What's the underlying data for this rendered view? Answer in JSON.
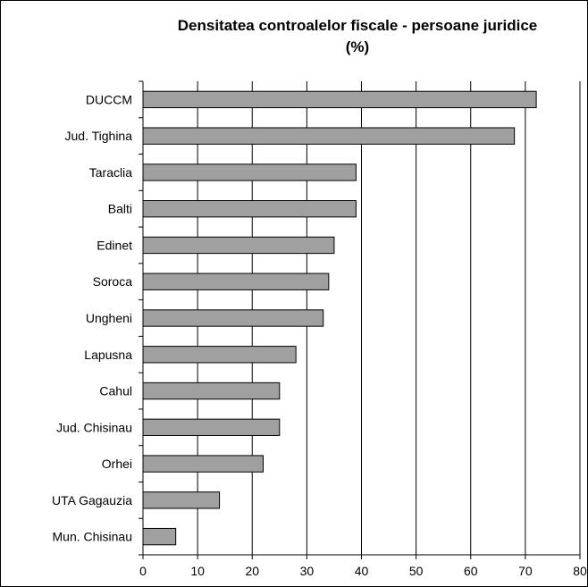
{
  "chart_data": {
    "type": "bar",
    "orientation": "horizontal",
    "title_lines": [
      "Densitatea controalelor fiscale - persoane juridice",
      "(%)"
    ],
    "categories": [
      "DUCCM",
      "Jud. Tighina",
      "Taraclia",
      "Balti",
      "Edinet",
      "Soroca",
      "Ungheni",
      "Lapusna",
      "Cahul",
      "Jud. Chisinau",
      "Orhei",
      "UTA Gagauzia",
      "Mun. Chisinau"
    ],
    "values": [
      72,
      68,
      39,
      39,
      35,
      34,
      33,
      28,
      25,
      25,
      22,
      14,
      6
    ],
    "xlim": [
      0,
      80
    ],
    "x_ticks": [
      0,
      10,
      20,
      30,
      40,
      50,
      60,
      70,
      80
    ],
    "grid": "vertical",
    "legend": "none",
    "colors": {
      "bar_fill": "#a0a0a0",
      "bar_stroke": "#000000",
      "grid": "#000000",
      "text": "#000000"
    }
  }
}
